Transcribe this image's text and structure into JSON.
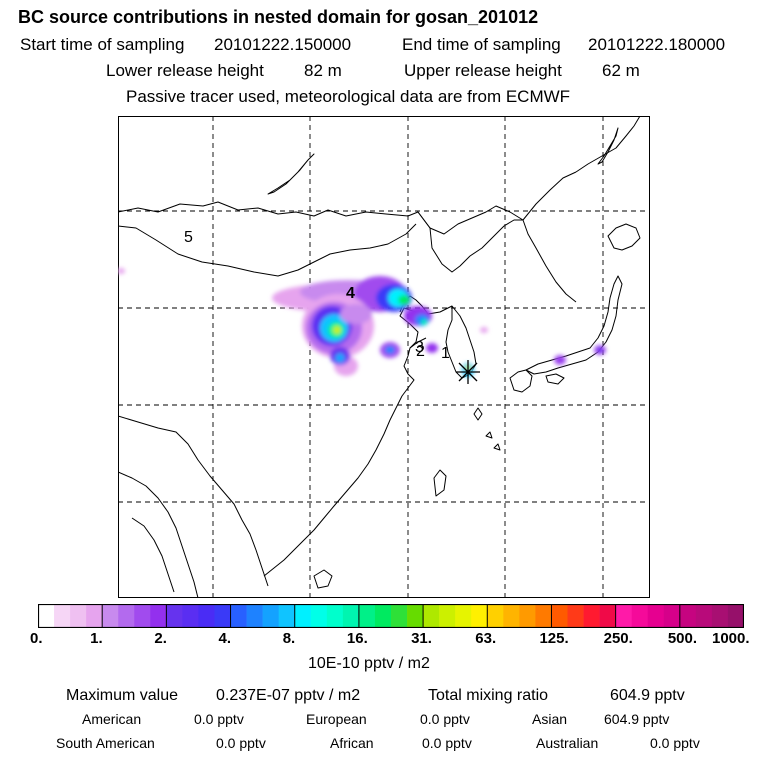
{
  "header": {
    "title": "BC  source contributions in nested domain for gosan_201012",
    "start_label": "Start time of sampling",
    "start_value": "20101222.150000",
    "end_label": "End time of sampling",
    "end_value": "20101222.180000",
    "lower_label": "Lower release height",
    "lower_value": "82 m",
    "upper_label": "Upper release height",
    "upper_value": "62 m",
    "note": "Passive tracer used, meteorological data are from ECMWF"
  },
  "map": {
    "labels": [
      "5",
      "4",
      "3",
      "2",
      "1"
    ],
    "receptor": "gosan"
  },
  "colorbar": {
    "ticks": [
      "0.",
      "1.",
      "2.",
      "4.",
      "8.",
      "16.",
      "31.",
      "63.",
      "125.",
      "250.",
      "500.",
      "1000."
    ],
    "colors": [
      "#ffffff",
      "#fcebfc",
      "#f6d6f6",
      "#efc0f1",
      "#e6a4ee",
      "#c88aee",
      "#b36aee",
      "#a14bee",
      "#9330ee",
      "#6633ee",
      "#5a2ef2",
      "#4a2cf5",
      "#3a3af7",
      "#2860ff",
      "#1e82ff",
      "#14a2ff",
      "#10c4ff",
      "#00f0ff",
      "#00ffe8",
      "#00ffcc",
      "#00f5b0",
      "#00f088",
      "#00ea60",
      "#2ee038",
      "#66dc00",
      "#aee800",
      "#ccf000",
      "#e6f400",
      "#fff000",
      "#ffd000",
      "#ffb400",
      "#ff9a00",
      "#ff7a00",
      "#ff5a00",
      "#ff3a18",
      "#ff1a30",
      "#f00a48",
      "#ff1aa8",
      "#f50a9a",
      "#e60090",
      "#d6008a",
      "#c60480",
      "#b80a7a",
      "#a80f72",
      "#96106a",
      "#851060",
      "#700c52",
      "#5a0a46",
      "#3c0630"
    ],
    "units": "10E-10 pptv / m2"
  },
  "summary": {
    "max_label": "Maximum value",
    "max_value": "0.237E-07 pptv / m2",
    "total_label": "Total mixing ratio",
    "total_value": "604.9 pptv",
    "american_label": "American",
    "american_value": "0.0 pptv",
    "european_label": "European",
    "european_value": "0.0 pptv",
    "asian_label": "Asian",
    "asian_value": "604.9 pptv",
    "south_american_label": "South American",
    "south_american_value": "0.0 pptv",
    "african_label": "African",
    "african_value": "0.0 pptv",
    "australian_label": "Australian",
    "australian_value": "0.0 pptv"
  }
}
